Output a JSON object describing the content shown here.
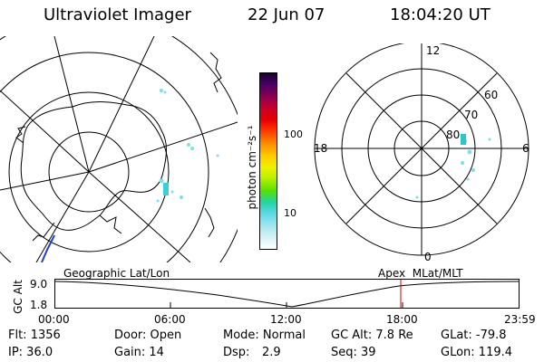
{
  "header": {
    "title": "Ultraviolet Imager",
    "date": "22 Jun 07",
    "time": "18:04:20 UT"
  },
  "colorbar": {
    "label": "photon cm⁻²s⁻¹",
    "ticks": [
      "100",
      "10"
    ],
    "colors": [
      "#1a0033",
      "#4b0066",
      "#8b0050",
      "#c8002a",
      "#e80000",
      "#ff4000",
      "#ff8c00",
      "#ffc800",
      "#f0f000",
      "#b4f000",
      "#5ae000",
      "#22d2a0",
      "#5fd8e8",
      "#9fe6ef",
      "#d6f2f5",
      "#ffffff"
    ]
  },
  "polar_grid": {
    "labels": [
      "12",
      "60",
      "70",
      "80",
      "18",
      "6",
      "0"
    ]
  },
  "altitude_strip": {
    "left_label": "Geographic Lat/Lon",
    "right_label": "Apex  MLat/MLT",
    "axis_label": "GC Alt",
    "y_ticks": [
      "9.0",
      "1.8"
    ],
    "time_ticks": [
      "00:00",
      "06:00",
      "12:00",
      "18:00",
      "23:59"
    ],
    "marker_color": "#cc0000"
  },
  "info": {
    "flt": "Flt: 1356",
    "door": "Door: Open",
    "mode": "Mode: Normal",
    "gc_alt": "GC Alt: 7.8 Re",
    "glat": "GLat: -79.8",
    "ip": "IP: 36.0",
    "gain": "Gain: 14",
    "dsp_label": "Dsp:",
    "dsp_value": "2.9",
    "seq": "Seq: 39",
    "glon": "GLon: 119.4"
  }
}
